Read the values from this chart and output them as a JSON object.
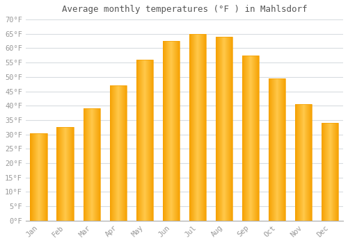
{
  "title": "Average monthly temperatures (°F ) in Mahlsdorf",
  "months": [
    "Jan",
    "Feb",
    "Mar",
    "Apr",
    "May",
    "Jun",
    "Jul",
    "Aug",
    "Sep",
    "Oct",
    "Nov",
    "Dec"
  ],
  "values": [
    30.5,
    32.5,
    39.0,
    47.0,
    56.0,
    62.5,
    65.0,
    64.0,
    57.5,
    49.5,
    40.5,
    34.0
  ],
  "bar_color_center": "#FFC84A",
  "bar_color_edge": "#F5A000",
  "background_color": "#FFFFFF",
  "plot_bg_color": "#FFFFFF",
  "grid_color": "#D8DCE0",
  "text_color": "#999999",
  "title_color": "#555555",
  "ylim": [
    0,
    70
  ],
  "ytick_step": 5
}
